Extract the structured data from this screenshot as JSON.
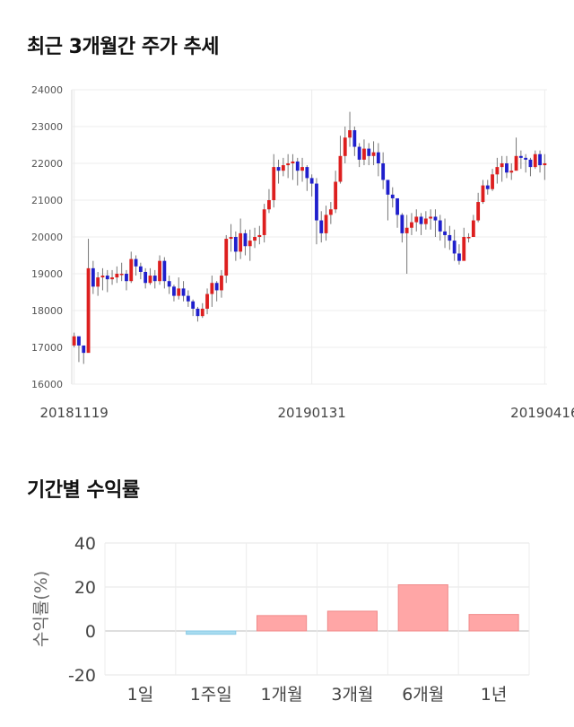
{
  "sections": {
    "price_title": "최근 3개월간 주가 추세",
    "returns_title": "기간별 수익률"
  },
  "chart_data": [
    {
      "type": "candlestick",
      "ylim": [
        16000,
        24000
      ],
      "yticks": [
        16000,
        17000,
        18000,
        19000,
        20000,
        21000,
        22000,
        23000,
        24000
      ],
      "xtick_labels": [
        "20181119",
        "20190131",
        "20190416"
      ],
      "xtick_index": [
        0,
        50,
        99
      ],
      "up_color": "#dd1f1f",
      "down_color": "#1f1fcc",
      "close": [
        17300,
        17050,
        16850,
        19150,
        18650,
        18900,
        18950,
        18850,
        18900,
        19000,
        19000,
        18800,
        19400,
        19200,
        19050,
        18750,
        18950,
        18800,
        19350,
        18800,
        18650,
        18400,
        18600,
        18400,
        18250,
        18050,
        17850,
        18050,
        18450,
        18750,
        18550,
        18950,
        19950,
        20000,
        19600,
        20100,
        19750,
        19900,
        20000,
        20050,
        20750,
        21000,
        21900,
        21800,
        21950,
        22000,
        22050,
        21800,
        21900,
        21600,
        21450,
        20450,
        20100,
        20600,
        20750,
        21500,
        22200,
        22700,
        22900,
        22450,
        22100,
        22400,
        22200,
        22300,
        22000,
        21550,
        21150,
        21050,
        20600,
        20100,
        20250,
        20400,
        20550,
        20350,
        20500,
        20550,
        20450,
        20150,
        20050,
        19900,
        19550,
        19350,
        20000,
        20000,
        20450,
        20950,
        21400,
        21300,
        21700,
        21900,
        22000,
        21750,
        21800,
        22200,
        22150,
        22100,
        21900,
        22250,
        21950,
        22000
      ],
      "range": [
        [
          17000,
          17400
        ],
        [
          16600,
          17200
        ],
        [
          16550,
          17000
        ],
        [
          16900,
          19950
        ],
        [
          18450,
          19350
        ],
        [
          18400,
          19050
        ],
        [
          18550,
          19150
        ],
        [
          18500,
          19100
        ],
        [
          18700,
          19100
        ],
        [
          18750,
          19200
        ],
        [
          18800,
          19300
        ],
        [
          18550,
          19100
        ],
        [
          18750,
          19600
        ],
        [
          18950,
          19500
        ],
        [
          18850,
          19300
        ],
        [
          18600,
          19150
        ],
        [
          18700,
          19150
        ],
        [
          18600,
          19100
        ],
        [
          18700,
          19500
        ],
        [
          18600,
          19450
        ],
        [
          18450,
          18950
        ],
        [
          18250,
          18700
        ],
        [
          18300,
          18900
        ],
        [
          18250,
          18800
        ],
        [
          18100,
          18550
        ],
        [
          17850,
          18300
        ],
        [
          17700,
          18100
        ],
        [
          17800,
          18200
        ],
        [
          17900,
          18600
        ],
        [
          18100,
          18950
        ],
        [
          18250,
          18800
        ],
        [
          18350,
          19100
        ],
        [
          18750,
          20050
        ],
        [
          19600,
          20350
        ],
        [
          19350,
          20150
        ],
        [
          19400,
          20500
        ],
        [
          19500,
          20200
        ],
        [
          19350,
          20200
        ],
        [
          19700,
          20250
        ],
        [
          19800,
          20300
        ],
        [
          19850,
          20900
        ],
        [
          20650,
          21300
        ],
        [
          20800,
          22250
        ],
        [
          21450,
          22100
        ],
        [
          21650,
          22150
        ],
        [
          21600,
          22250
        ],
        [
          21550,
          22250
        ],
        [
          21400,
          22150
        ],
        [
          21500,
          22150
        ],
        [
          21250,
          21950
        ],
        [
          21100,
          21700
        ],
        [
          19800,
          21600
        ],
        [
          19850,
          20700
        ],
        [
          19900,
          20850
        ],
        [
          20350,
          20950
        ],
        [
          20650,
          21800
        ],
        [
          21450,
          22750
        ],
        [
          22000,
          23000
        ],
        [
          22450,
          23400
        ],
        [
          22200,
          23000
        ],
        [
          21900,
          22550
        ],
        [
          21950,
          22650
        ],
        [
          21950,
          22550
        ],
        [
          21950,
          22600
        ],
        [
          21650,
          22550
        ],
        [
          21300,
          22300
        ],
        [
          20450,
          21350
        ],
        [
          20800,
          21350
        ],
        [
          20250,
          20900
        ],
        [
          19850,
          20650
        ],
        [
          19000,
          20600
        ],
        [
          20050,
          20650
        ],
        [
          20150,
          20750
        ],
        [
          20050,
          20650
        ],
        [
          20200,
          20700
        ],
        [
          20200,
          20750
        ],
        [
          20000,
          20750
        ],
        [
          19900,
          20600
        ],
        [
          19700,
          20500
        ],
        [
          19650,
          20300
        ],
        [
          19350,
          20200
        ],
        [
          19250,
          19800
        ],
        [
          19400,
          20250
        ],
        [
          19850,
          20100
        ],
        [
          20050,
          20600
        ],
        [
          20400,
          21200
        ],
        [
          20900,
          21550
        ],
        [
          21150,
          21550
        ],
        [
          21250,
          21850
        ],
        [
          21450,
          22150
        ],
        [
          21500,
          22200
        ],
        [
          21600,
          22200
        ],
        [
          21550,
          22000
        ],
        [
          21850,
          22700
        ],
        [
          21850,
          22350
        ],
        [
          21750,
          22250
        ],
        [
          21650,
          22150
        ],
        [
          21850,
          22350
        ],
        [
          21750,
          22350
        ],
        [
          21550,
          22250
        ]
      ]
    },
    {
      "type": "bar",
      "ylabel": "수익률(%)",
      "ylim": [
        -20,
        40
      ],
      "yticks": [
        -20,
        0,
        20,
        40
      ],
      "categories": [
        "1일",
        "1주일",
        "1개월",
        "3개월",
        "6개월",
        "1년"
      ],
      "values": [
        0,
        -1.5,
        7,
        9,
        21,
        7.5
      ],
      "positive_color": "#ffa6a6",
      "negative_color": "#a8dcf0"
    }
  ]
}
